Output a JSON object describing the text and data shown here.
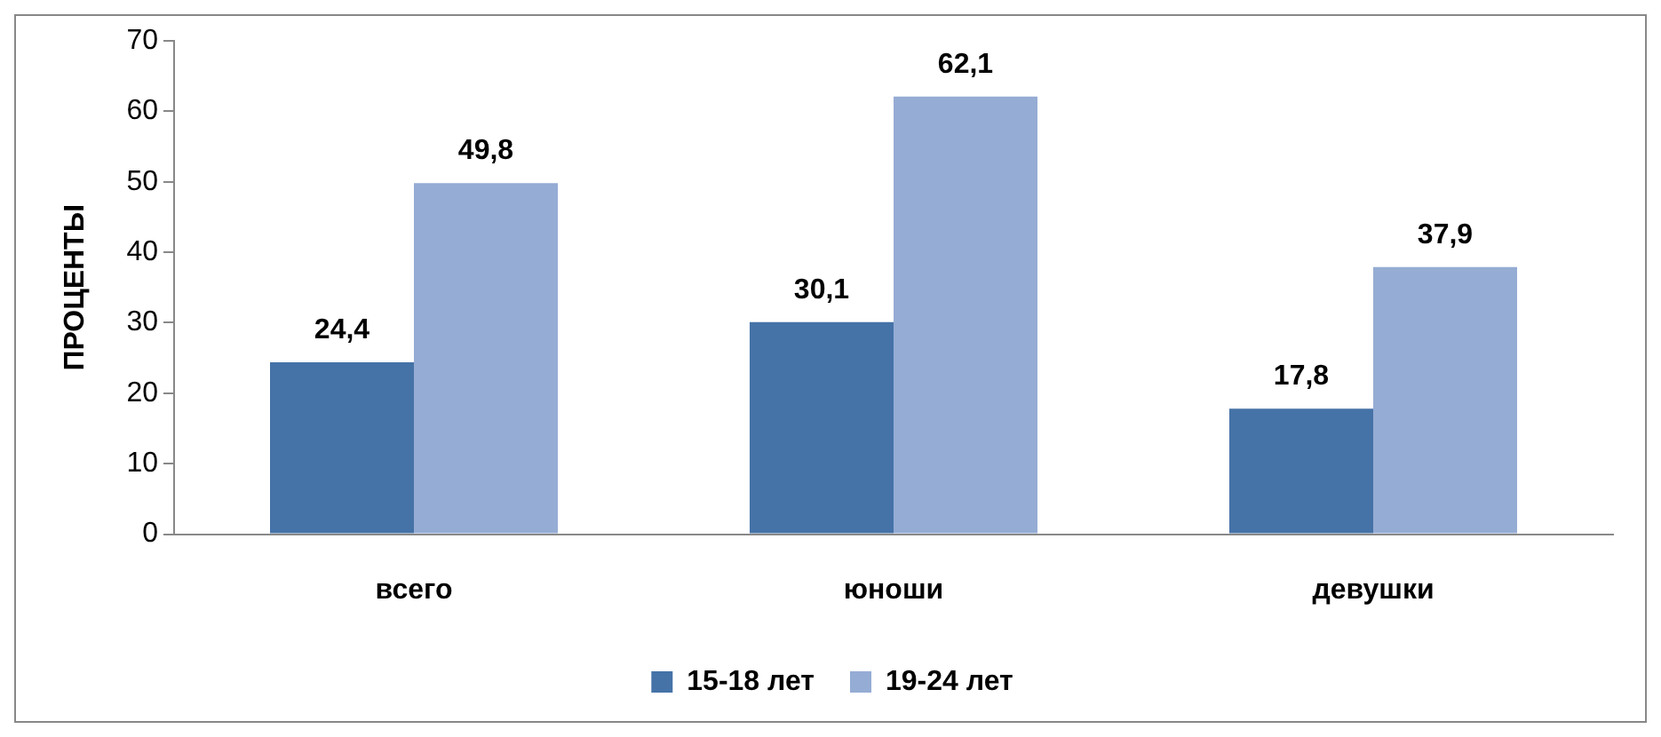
{
  "chart_data": {
    "type": "bar",
    "ylabel": "ПРОЦЕНТЫ",
    "categories": [
      "всего",
      "юноши",
      "девушки"
    ],
    "series": [
      {
        "name": "15-18 лет",
        "color": "#4572a7",
        "values": [
          24.4,
          30.1,
          17.8
        ],
        "value_labels": [
          "24,4",
          "30,1",
          "17,8"
        ]
      },
      {
        "name": "19-24 лет",
        "color": "#95acd4",
        "values": [
          49.8,
          62.1,
          37.9
        ],
        "value_labels": [
          "49,8",
          "62,1",
          "37,9"
        ]
      }
    ],
    "ylim": [
      0,
      70
    ],
    "yticks": [
      0,
      10,
      20,
      30,
      40,
      50,
      60,
      70
    ],
    "grid": false,
    "legend": "bottom"
  }
}
